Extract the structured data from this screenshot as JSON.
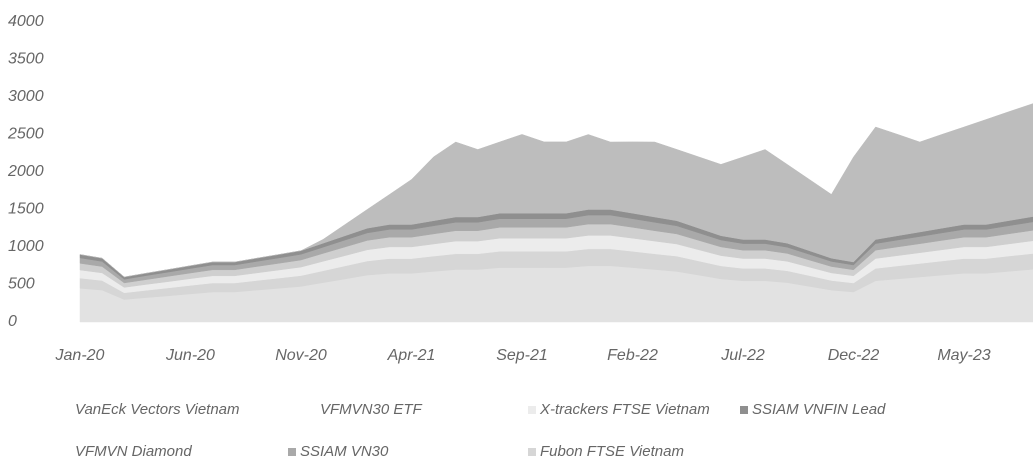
{
  "chart_data": {
    "type": "area",
    "stacked": true,
    "categories": [
      "Jan-20",
      null,
      null,
      null,
      null,
      "Jun-20",
      null,
      null,
      null,
      null,
      "Nov-20",
      null,
      null,
      null,
      null,
      "Apr-21",
      null,
      null,
      null,
      null,
      "Sep-21",
      null,
      null,
      null,
      null,
      "Feb-22",
      null,
      null,
      null,
      null,
      "Jul-22",
      null,
      null,
      null,
      null,
      "Dec-22",
      null,
      null,
      null,
      null,
      "May-23",
      null,
      null,
      null,
      null
    ],
    "ylim": [
      0,
      4000
    ],
    "yticks": [
      0,
      500,
      1000,
      1500,
      2000,
      2500,
      3000,
      3500,
      4000
    ],
    "series": [
      {
        "name": "VFMVN30 ETF",
        "color": "#e2e2e2",
        "values": [
          450,
          425,
          300,
          325,
          350,
          375,
          400,
          400,
          425,
          450,
          475,
          525,
          575,
          625,
          650,
          650,
          675,
          700,
          700,
          725,
          725,
          725,
          725,
          750,
          750,
          725,
          700,
          675,
          625,
          575,
          550,
          550,
          525,
          475,
          425,
          400,
          550,
          575,
          600,
          625,
          650,
          650,
          675,
          700,
          725
        ]
      },
      {
        "name": "Fubon FTSE Vietnam",
        "color": "#d6d6d6",
        "values": [
          135,
          128,
          90,
          98,
          105,
          113,
          120,
          120,
          128,
          135,
          143,
          158,
          173,
          188,
          195,
          195,
          203,
          210,
          210,
          218,
          218,
          218,
          218,
          225,
          225,
          218,
          210,
          203,
          188,
          173,
          165,
          165,
          158,
          143,
          128,
          120,
          165,
          173,
          180,
          188,
          195,
          195,
          203,
          210,
          218
        ]
      },
      {
        "name": "X-trackers FTSE Vietnam",
        "color": "#ececec",
        "values": [
          108,
          102,
          72,
          78,
          84,
          90,
          96,
          96,
          102,
          108,
          114,
          126,
          138,
          150,
          156,
          156,
          162,
          168,
          168,
          174,
          174,
          174,
          174,
          180,
          180,
          174,
          168,
          162,
          150,
          138,
          132,
          132,
          126,
          114,
          102,
          96,
          132,
          138,
          144,
          150,
          156,
          156,
          162,
          168,
          174
        ]
      },
      {
        "name": "VanEck Vectors Vietnam",
        "color": "#cfcfcf",
        "values": [
          90,
          85,
          60,
          65,
          70,
          75,
          80,
          80,
          85,
          90,
          95,
          105,
          115,
          125,
          130,
          130,
          135,
          140,
          140,
          145,
          145,
          145,
          145,
          150,
          150,
          145,
          140,
          135,
          125,
          115,
          110,
          110,
          105,
          95,
          85,
          80,
          110,
          115,
          120,
          125,
          130,
          130,
          135,
          140,
          145
        ]
      },
      {
        "name": "SSIAM VN30",
        "color": "#a9a9a9",
        "values": [
          72,
          68,
          48,
          52,
          56,
          60,
          64,
          64,
          68,
          72,
          76,
          84,
          92,
          100,
          104,
          104,
          108,
          112,
          112,
          116,
          116,
          116,
          116,
          120,
          120,
          116,
          112,
          108,
          100,
          92,
          88,
          88,
          84,
          76,
          68,
          64,
          88,
          92,
          96,
          100,
          104,
          104,
          108,
          112,
          116
        ]
      },
      {
        "name": "SSIAM VNFIN Lead",
        "color": "#8f8f8f",
        "values": [
          45,
          43,
          30,
          33,
          35,
          38,
          40,
          40,
          43,
          45,
          48,
          53,
          58,
          63,
          65,
          65,
          68,
          70,
          70,
          73,
          73,
          73,
          73,
          75,
          75,
          73,
          70,
          68,
          63,
          58,
          55,
          55,
          53,
          48,
          43,
          40,
          55,
          58,
          60,
          63,
          65,
          65,
          68,
          70,
          73
        ]
      },
      {
        "name": "VFMVN Diamond",
        "color": "#bdbdbd",
        "values": [
          0,
          0,
          0,
          0,
          0,
          0,
          0,
          0,
          0,
          0,
          0,
          50,
          150,
          250,
          400,
          600,
          850,
          1000,
          900,
          950,
          1050,
          950,
          950,
          1000,
          900,
          950,
          1000,
          950,
          950,
          950,
          1100,
          1200,
          1050,
          950,
          850,
          1400,
          1500,
          1350,
          1200,
          1250,
          1300,
          1400,
          1450,
          1500,
          1550
        ]
      }
    ]
  }
}
